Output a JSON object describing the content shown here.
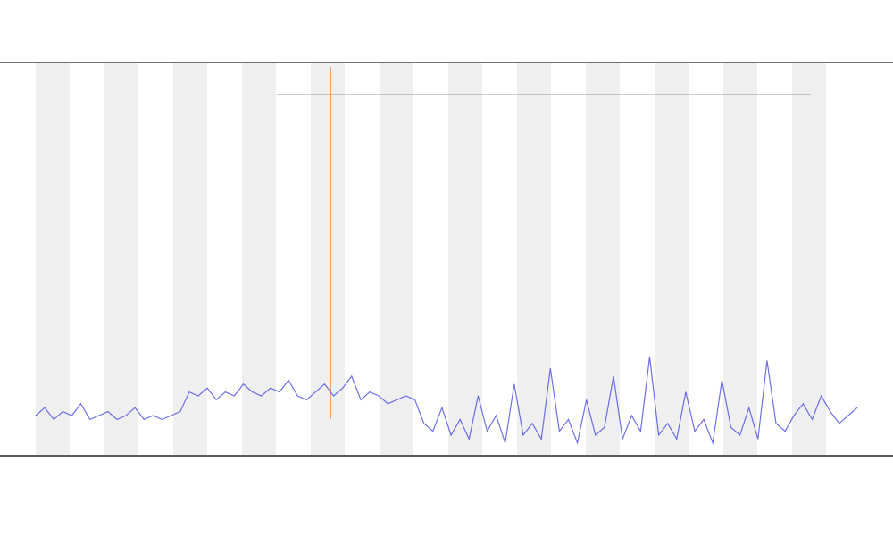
{
  "chart_data": {
    "type": "line",
    "series": [
      {
        "color": "#4a4ae0",
        "values": [
          10,
          12,
          9,
          11,
          10,
          13,
          9,
          10,
          11,
          9,
          10,
          12,
          9,
          10,
          9,
          10,
          11,
          16,
          15,
          17,
          14,
          16,
          15,
          18,
          16,
          15,
          17,
          16,
          19,
          15,
          14,
          16,
          18,
          15,
          17,
          20,
          14,
          16,
          15,
          13,
          14,
          15,
          14,
          8,
          6,
          12,
          5,
          9,
          4,
          15,
          6,
          10,
          3,
          18,
          5,
          8,
          4,
          22,
          6,
          9,
          3,
          14,
          5,
          7,
          20,
          4,
          10,
          6,
          25,
          5,
          8,
          4,
          16,
          6,
          9,
          3,
          19,
          7,
          5,
          12,
          4,
          24,
          8,
          6,
          10,
          13,
          9,
          15,
          11,
          8,
          10,
          12
        ]
      }
    ],
    "ylim": [
      0,
      100
    ]
  }
}
